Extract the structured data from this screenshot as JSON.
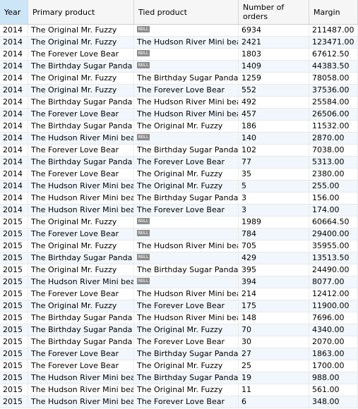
{
  "headers": [
    "Year",
    "Primary product",
    "Tied product",
    "Number of\norders",
    "Margin"
  ],
  "null_label": "NULL",
  "rows": [
    [
      "2014",
      "The Original Mr. Fuzzy",
      null,
      "6934",
      "211487.00"
    ],
    [
      "2014",
      "The Original Mr. Fuzzy",
      "The Hudson River Mini bear",
      "2421",
      "123471.00"
    ],
    [
      "2014",
      "The Forever Love Bear",
      null,
      "1803",
      "67612.50"
    ],
    [
      "2014",
      "The Birthday Sugar Panda",
      null,
      "1409",
      "44383.50"
    ],
    [
      "2014",
      "The Original Mr. Fuzzy",
      "The Birthday Sugar Panda",
      "1259",
      "78058.00"
    ],
    [
      "2014",
      "The Original Mr. Fuzzy",
      "The Forever Love Bear",
      "552",
      "37536.00"
    ],
    [
      "2014",
      "The Birthday Sugar Panda",
      "The Hudson River Mini bear",
      "492",
      "25584.00"
    ],
    [
      "2014",
      "The Forever Love Bear",
      "The Hudson River Mini bear",
      "457",
      "26506.00"
    ],
    [
      "2014",
      "The Birthday Sugar Panda",
      "The Original Mr. Fuzzy",
      "186",
      "11532.00"
    ],
    [
      "2014",
      "The Hudson River Mini bear",
      null,
      "140",
      "2870.00"
    ],
    [
      "2014",
      "The Forever Love Bear",
      "The Birthday Sugar Panda",
      "102",
      "7038.00"
    ],
    [
      "2014",
      "The Birthday Sugar Panda",
      "The Forever Love Bear",
      "77",
      "5313.00"
    ],
    [
      "2014",
      "The Forever Love Bear",
      "The Original Mr. Fuzzy",
      "35",
      "2380.00"
    ],
    [
      "2014",
      "The Hudson River Mini bear",
      "The Original Mr. Fuzzy",
      "5",
      "255.00"
    ],
    [
      "2014",
      "The Hudson River Mini bear",
      "The Birthday Sugar Panda",
      "3",
      "156.00"
    ],
    [
      "2014",
      "The Hudson River Mini bear",
      "The Forever Love Bear",
      "3",
      "174.00"
    ],
    [
      "2015",
      "The Original Mr. Fuzzy",
      null,
      "1989",
      "60664.50"
    ],
    [
      "2015",
      "The Forever Love Bear",
      null,
      "784",
      "29400.00"
    ],
    [
      "2015",
      "The Original Mr. Fuzzy",
      "The Hudson River Mini bear",
      "705",
      "35955.00"
    ],
    [
      "2015",
      "The Birthday Sugar Panda",
      null,
      "429",
      "13513.50"
    ],
    [
      "2015",
      "The Original Mr. Fuzzy",
      "The Birthday Sugar Panda",
      "395",
      "24490.00"
    ],
    [
      "2015",
      "The Hudson River Mini bear",
      null,
      "394",
      "8077.00"
    ],
    [
      "2015",
      "The Forever Love Bear",
      "The Hudson River Mini bear",
      "214",
      "12412.00"
    ],
    [
      "2015",
      "The Original Mr. Fuzzy",
      "The Forever Love Bear",
      "175",
      "11900.00"
    ],
    [
      "2015",
      "The Birthday Sugar Panda",
      "The Hudson River Mini bear",
      "148",
      "7696.00"
    ],
    [
      "2015",
      "The Birthday Sugar Panda",
      "The Original Mr. Fuzzy",
      "70",
      "4340.00"
    ],
    [
      "2015",
      "The Birthday Sugar Panda",
      "The Forever Love Bear",
      "30",
      "2070.00"
    ],
    [
      "2015",
      "The Forever Love Bear",
      "The Birthday Sugar Panda",
      "27",
      "1863.00"
    ],
    [
      "2015",
      "The Forever Love Bear",
      "The Original Mr. Fuzzy",
      "25",
      "1700.00"
    ],
    [
      "2015",
      "The Hudson River Mini bear",
      "The Birthday Sugar Panda",
      "19",
      "988.00"
    ],
    [
      "2015",
      "The Hudson River Mini bear",
      "The Original Mr. Fuzzy",
      "11",
      "561.00"
    ],
    [
      "2015",
      "The Hudson River Mini bear",
      "The Forever Love Bear",
      "6",
      "348.00"
    ]
  ],
  "colors": {
    "header_bg": "#f6f6f6",
    "selected_header": "#cce5f7",
    "alt_row": "#f1f7fc",
    "null_tag": "#8c8c8c"
  }
}
